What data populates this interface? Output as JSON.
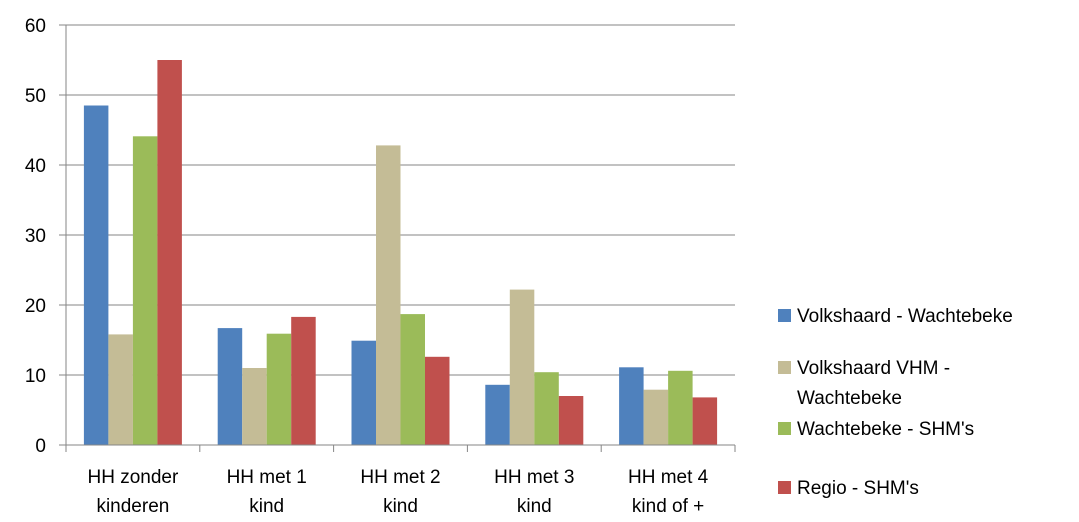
{
  "chart_data": {
    "type": "bar",
    "title": "",
    "xlabel": "",
    "ylabel": "",
    "ylim": [
      0,
      60
    ],
    "yticks": [
      0,
      10,
      20,
      30,
      40,
      50,
      60
    ],
    "grid": true,
    "legend_position": "right",
    "categories": [
      [
        "HH zonder",
        "kinderen"
      ],
      [
        "HH met 1",
        "kind"
      ],
      [
        "HH met 2",
        "kind"
      ],
      [
        "HH met 3",
        "kind"
      ],
      [
        "HH met 4",
        "kind of +"
      ]
    ],
    "series": [
      {
        "name": [
          "Volkshaard - Wachtebeke"
        ],
        "color": "#4f81bd",
        "values": [
          48.5,
          16.7,
          14.9,
          8.6,
          11.1
        ]
      },
      {
        "name": [
          "Volkshaard VHM -",
          "Wachtebeke"
        ],
        "color": "#c4bc96",
        "values": [
          15.8,
          11.0,
          42.8,
          22.2,
          7.9
        ]
      },
      {
        "name": [
          "Wachtebeke - SHM's"
        ],
        "color": "#9bbb59",
        "values": [
          44.1,
          15.9,
          18.7,
          10.4,
          10.6
        ]
      },
      {
        "name": [
          "Regio - SHM's"
        ],
        "color": "#c0504d",
        "values": [
          55.0,
          18.3,
          12.6,
          7.0,
          6.8
        ]
      }
    ]
  }
}
